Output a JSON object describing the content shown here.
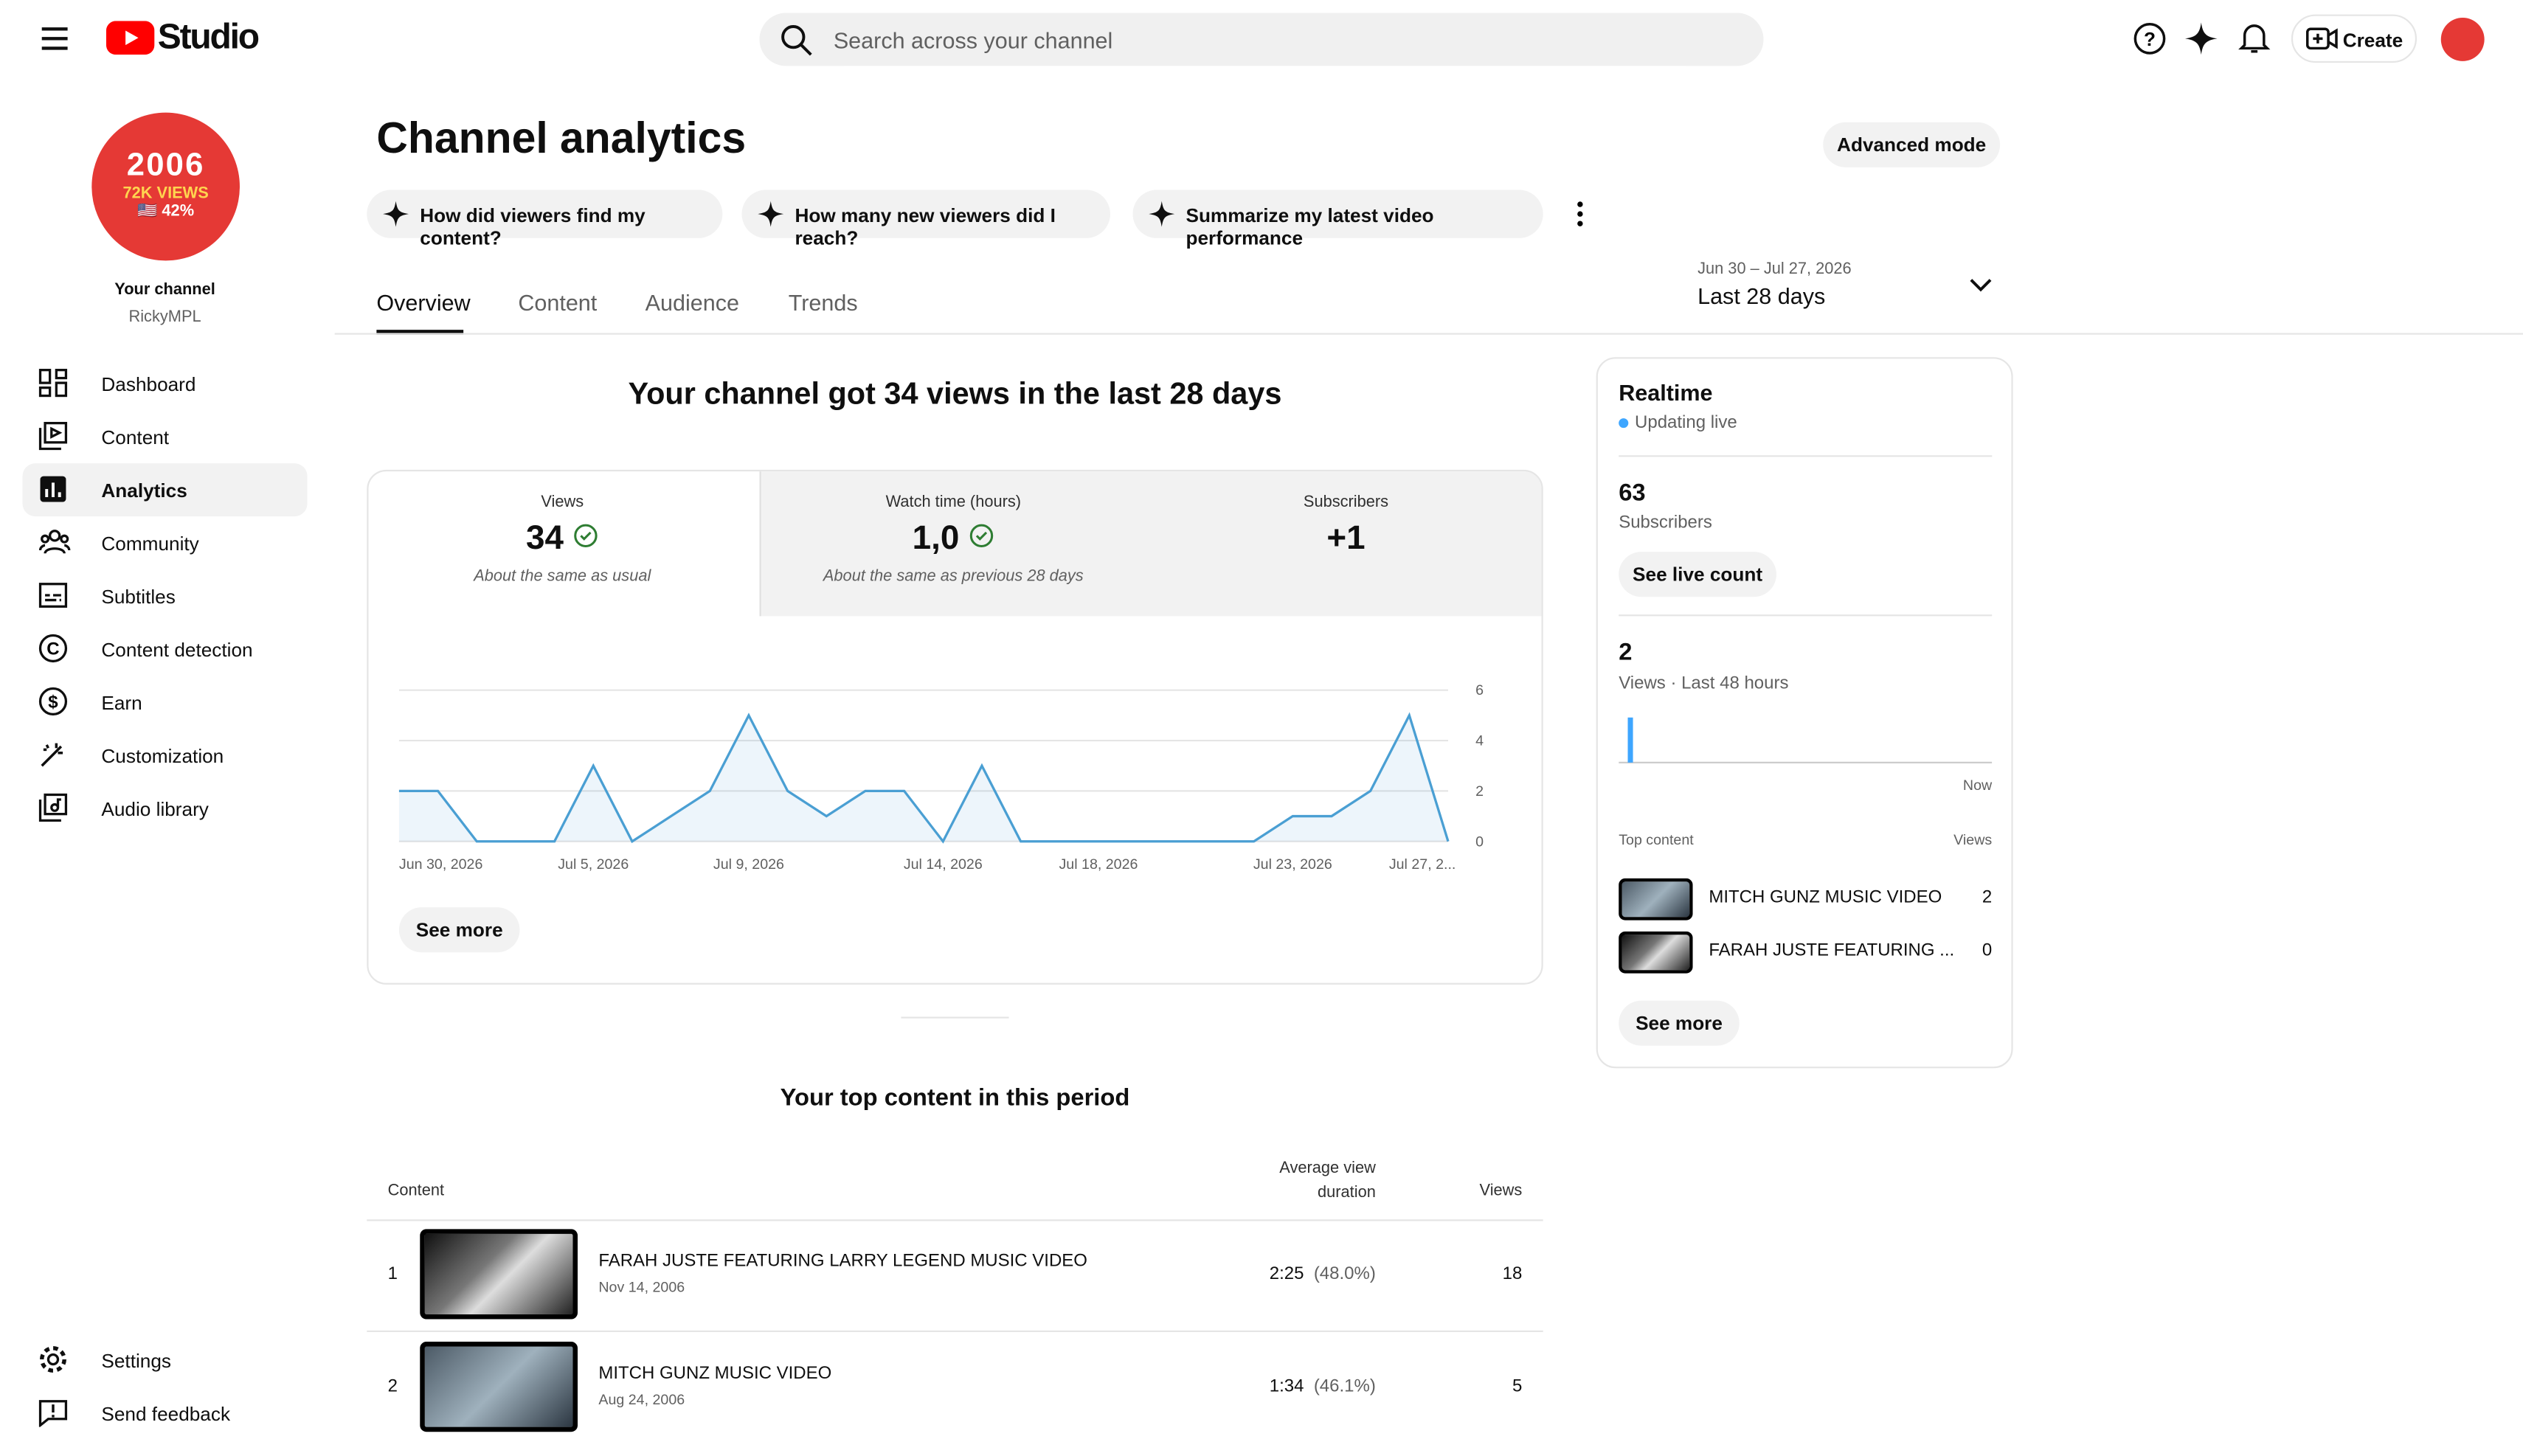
{
  "header": {
    "logo": "Studio",
    "search_placeholder": "Search across your channel",
    "create": "Create"
  },
  "sidebar": {
    "avatar_lines": [
      "2006",
      "72K VIEWS",
      "🇺🇸 42%"
    ],
    "channel_label": "Your channel",
    "channel_name": "RickyMPL",
    "nav": [
      "Dashboard",
      "Content",
      "Analytics",
      "Community",
      "Subtitles",
      "Content detection",
      "Earn",
      "Customization",
      "Audio library"
    ],
    "bottom": [
      "Settings",
      "Send feedback"
    ]
  },
  "page": {
    "title": "Channel analytics",
    "advanced": "Advanced mode",
    "prompts": [
      "How did viewers find my content?",
      "How many new viewers did I reach?",
      "Summarize my latest video performance"
    ],
    "tabs": [
      "Overview",
      "Content",
      "Audience",
      "Trends"
    ],
    "date_range": "Jun 30 – Jul 27, 2026",
    "period": "Last 28 days"
  },
  "summary": {
    "headline": "Your channel got 34 views in the last 28 days",
    "cards": [
      {
        "label": "Views",
        "value": "34",
        "note": "About the same as usual"
      },
      {
        "label": "Watch time (hours)",
        "value": "1,0",
        "note": "About the same as previous 28 days"
      },
      {
        "label": "Subscribers",
        "value": "+1"
      }
    ],
    "see_more": "See more"
  },
  "chart_data": {
    "type": "line",
    "categories": [
      "Jun 30, 2026",
      null,
      null,
      null,
      null,
      "Jul 5, 2026",
      null,
      null,
      null,
      "Jul 9, 2026",
      null,
      null,
      null,
      null,
      "Jul 14, 2026",
      null,
      null,
      null,
      "Jul 18, 2026",
      null,
      null,
      null,
      null,
      "Jul 23, 2026",
      null,
      null,
      null,
      "Jul 27, 2..."
    ],
    "values": [
      2,
      2,
      0,
      0,
      0,
      3,
      0,
      1,
      2,
      5,
      2,
      1,
      2,
      2,
      0,
      3,
      0,
      0,
      0,
      0,
      0,
      0,
      0,
      1,
      1,
      2,
      5,
      0
    ],
    "color": "#4a9fd3",
    "ylim": [
      0,
      6
    ],
    "yticks": [
      0,
      2,
      4,
      6
    ],
    "grid": true
  },
  "top_content": {
    "title": "Your top content in this period",
    "headers": [
      "Content",
      "Average view duration",
      "Views"
    ],
    "rows": [
      {
        "rank": "1",
        "title": "FARAH JUSTE FEATURING LARRY LEGEND MUSIC VIDEO",
        "date": "Nov 14, 2006",
        "avg": "2:25",
        "pct": "(48.0%)",
        "views": 18
      },
      {
        "rank": "2",
        "title": "MITCH GUNZ MUSIC VIDEO",
        "date": "Aug 24, 2006",
        "avg": "1:34",
        "pct": "(46.1%)",
        "views": 5
      }
    ]
  },
  "realtime": {
    "title": "Realtime",
    "status": "Updating live",
    "subscribers": 63,
    "subscribers_label": "Subscribers",
    "live_count": "See live count",
    "views": 2,
    "views_label": "Views · Last 48 hours",
    "hourly_views": [
      0,
      2,
      0,
      0,
      0,
      0,
      0,
      0,
      0,
      0,
      0,
      0,
      0,
      0,
      0,
      0,
      0,
      0,
      0,
      0,
      0,
      0,
      0,
      0,
      0,
      0,
      0,
      0,
      0,
      0,
      0,
      0,
      0,
      0,
      0,
      0,
      0,
      0,
      0,
      0,
      0,
      0,
      0,
      0,
      0,
      0,
      0,
      0
    ],
    "now": "Now",
    "top_label": "Top content",
    "views_col": "Views",
    "top": [
      {
        "title": "MITCH GUNZ MUSIC VIDEO",
        "views": 2
      },
      {
        "title": "FARAH JUSTE FEATURING ...",
        "views": 0
      }
    ],
    "see_more": "See more"
  }
}
